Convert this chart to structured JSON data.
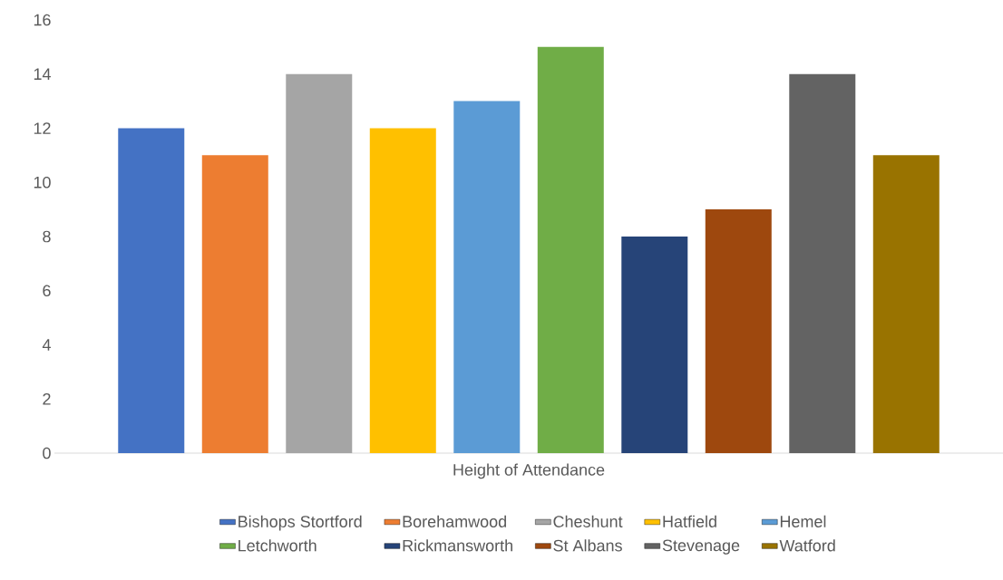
{
  "chart_data": {
    "type": "bar",
    "categories": [
      "Height of Attendance"
    ],
    "series": [
      {
        "name": "Bishops Stortford",
        "color": "#4472c4",
        "values": [
          12
        ]
      },
      {
        "name": "Borehamwood",
        "color": "#ed7d31",
        "values": [
          11
        ]
      },
      {
        "name": "Cheshunt",
        "color": "#a5a5a5",
        "values": [
          14
        ]
      },
      {
        "name": "Hatfield",
        "color": "#ffc000",
        "values": [
          12
        ]
      },
      {
        "name": "Hemel",
        "color": "#5b9bd5",
        "values": [
          13
        ]
      },
      {
        "name": "Letchworth",
        "color": "#70ad47",
        "values": [
          15
        ]
      },
      {
        "name": "Rickmansworth",
        "color": "#264478",
        "values": [
          8
        ]
      },
      {
        "name": "St Albans",
        "color": "#9e480e",
        "values": [
          9
        ]
      },
      {
        "name": "Stevenage",
        "color": "#636363",
        "values": [
          14
        ]
      },
      {
        "name": "Watford",
        "color": "#997300",
        "values": [
          11
        ]
      }
    ],
    "ylim": [
      0,
      16
    ],
    "yticks": [
      0,
      2,
      4,
      6,
      8,
      10,
      12,
      14,
      16
    ],
    "legend": "bottom",
    "grid": false
  }
}
